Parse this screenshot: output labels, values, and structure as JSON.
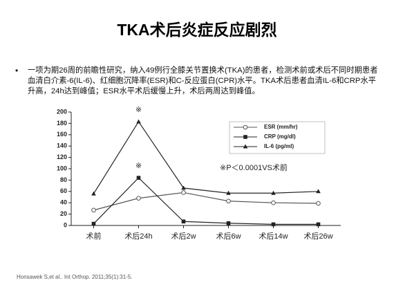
{
  "slide": {
    "title": "TKA术后炎症反应剧烈",
    "bullet": "一项为期26周的前瞻性研究，纳入49例行全膝关节置换术(TKA)的患者，检测术前或术后不同时期患者血清白介素-6(IL-6)、红细胞沉降率(ESR)和C-反应蛋白(CPR)水平。TKA术后患者血清IL-6和CRP水平升高，24h达到峰值；ESR水平术后缓慢上升，术后两周达到峰值。",
    "citation": "Honsawek S,et al.. Int Orthop. 2011;35(1):31-5."
  },
  "chart_data": {
    "type": "line",
    "categories": [
      "术前",
      "术后24h",
      "术后2w",
      "术后6w",
      "术后14w",
      "术后26w"
    ],
    "series": [
      {
        "name": "ESR (mm/hr)",
        "color": "#555555",
        "marker": "circle-open",
        "values": [
          27,
          48,
          58,
          43,
          40,
          39
        ]
      },
      {
        "name": "CRP (mg/dl)",
        "color": "#222222",
        "marker": "square",
        "values": [
          3,
          84,
          7,
          4,
          2,
          2
        ]
      },
      {
        "name": "IL-6 (pg/ml)",
        "color": "#222222",
        "marker": "triangle",
        "values": [
          56,
          183,
          66,
          57,
          57,
          60
        ]
      }
    ],
    "ylim": [
      0,
      200
    ],
    "yticks": [
      0,
      20,
      40,
      60,
      80,
      100,
      120,
      140,
      160,
      180,
      200
    ],
    "annotations": [
      "※",
      "※",
      "※P＜0.0001VS术前"
    ],
    "legend": "upper-right"
  }
}
